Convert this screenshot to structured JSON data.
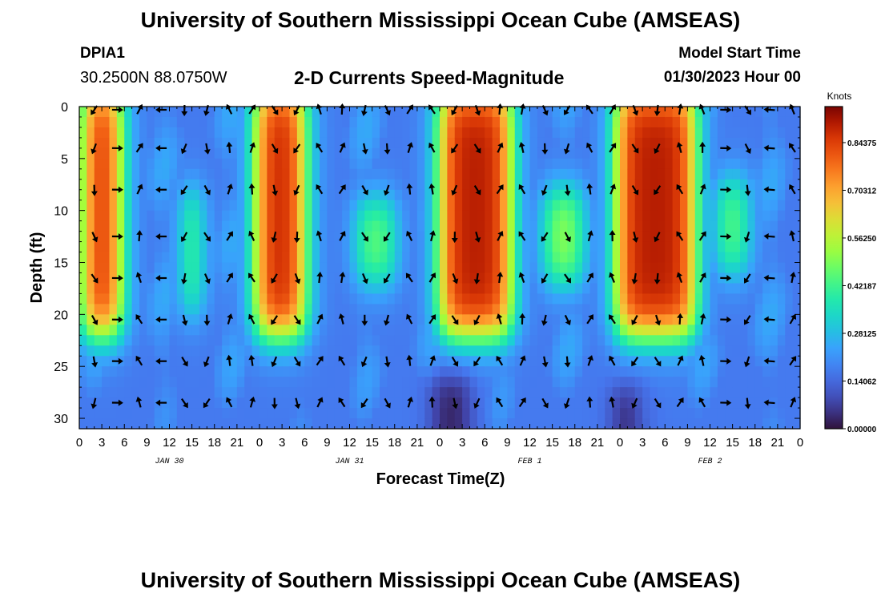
{
  "page": {
    "title": "University of Southern Mississippi Ocean Cube (AMSEAS)",
    "footer_title": "University of Southern Mississippi Ocean Cube (AMSEAS)",
    "station_id": "DPIA1",
    "coordinates": "30.2500N  88.0750W",
    "subtitle": "2-D Currents Speed-Magnitude",
    "model_start_label": "Model Start Time",
    "model_start_value": "01/30/2023 Hour 00"
  },
  "chart_data": {
    "type": "heatmap",
    "title": "2-D Currents Speed-Magnitude",
    "xlabel": "Forecast Time(Z)",
    "ylabel": "Depth (ft)",
    "xlim": [
      0,
      96
    ],
    "ylim": [
      31,
      0
    ],
    "x_tick_labels": [
      "0",
      "3",
      "6",
      "9",
      "12",
      "15",
      "18",
      "21",
      "0",
      "3",
      "6",
      "9",
      "12",
      "15",
      "18",
      "21",
      "0",
      "3",
      "6",
      "9",
      "12",
      "15",
      "18",
      "21",
      "0",
      "3",
      "6",
      "9",
      "12",
      "15",
      "18",
      "21",
      "0"
    ],
    "y_ticks": [
      0,
      5,
      10,
      15,
      20,
      25,
      30
    ],
    "day_labels": [
      {
        "hour": 12,
        "label": "JAN 30"
      },
      {
        "hour": 36,
        "label": "JAN 31"
      },
      {
        "hour": 60,
        "label": "FEB 1"
      },
      {
        "hour": 84,
        "label": "FEB 2"
      }
    ],
    "colorbar": {
      "label": "Knots",
      "range": [
        0,
        0.95
      ],
      "ticks": [
        "0.00000",
        "0.14062",
        "0.28125",
        "0.42187",
        "0.56250",
        "0.70312",
        "0.84375"
      ],
      "tick_values": [
        0,
        0.140625,
        0.28125,
        0.421875,
        0.5625,
        0.703125,
        0.84375
      ]
    },
    "features": [
      {
        "name": "strong ebb/flood column",
        "hours": [
          0.5,
          5.5
        ],
        "depths": [
          0,
          22
        ],
        "speed": 0.9
      },
      {
        "name": "strong column",
        "hours": [
          23.5,
          30
        ],
        "depths": [
          0,
          22
        ],
        "speed": 0.9
      },
      {
        "name": "strong column",
        "hours": [
          48,
          57.5
        ],
        "depths": [
          0,
          22
        ],
        "speed": 0.9
      },
      {
        "name": "strong column",
        "hours": [
          71.5,
          82
        ],
        "depths": [
          0,
          22
        ],
        "speed": 0.9
      },
      {
        "name": "moderate band",
        "hours": [
          14,
          16
        ],
        "depths": [
          10,
          20
        ],
        "speed": 0.55
      },
      {
        "name": "moderate band",
        "hours": [
          37,
          42
        ],
        "depths": [
          11,
          17
        ],
        "speed": 0.5
      },
      {
        "name": "moderate band",
        "hours": [
          62,
          67
        ],
        "depths": [
          10,
          17
        ],
        "speed": 0.55
      },
      {
        "name": "moderate band",
        "hours": [
          85,
          89
        ],
        "depths": [
          9,
          16
        ],
        "speed": 0.5
      },
      {
        "name": "low speed near bottom",
        "hours": [
          47,
          52
        ],
        "depths": [
          26,
          31
        ],
        "speed": 0.02
      },
      {
        "name": "low speed near bottom",
        "hours": [
          71,
          75
        ],
        "depths": [
          27,
          31
        ],
        "speed": 0.03
      }
    ],
    "vector_depths": [
      0,
      4,
      8,
      12.5,
      16.5,
      20.5,
      24.5,
      28.5
    ],
    "vector_hours": [
      2,
      5,
      8,
      11,
      14,
      17,
      20,
      23,
      26,
      29,
      32,
      35,
      38,
      41,
      44,
      47,
      50,
      53,
      56,
      59,
      62,
      65,
      68,
      71,
      74,
      77,
      80,
      83,
      86,
      89,
      92,
      95
    ],
    "vector_note": "Arrows show current direction; roughly northward (up) on flood hours, southward (down) on ebb hours"
  }
}
